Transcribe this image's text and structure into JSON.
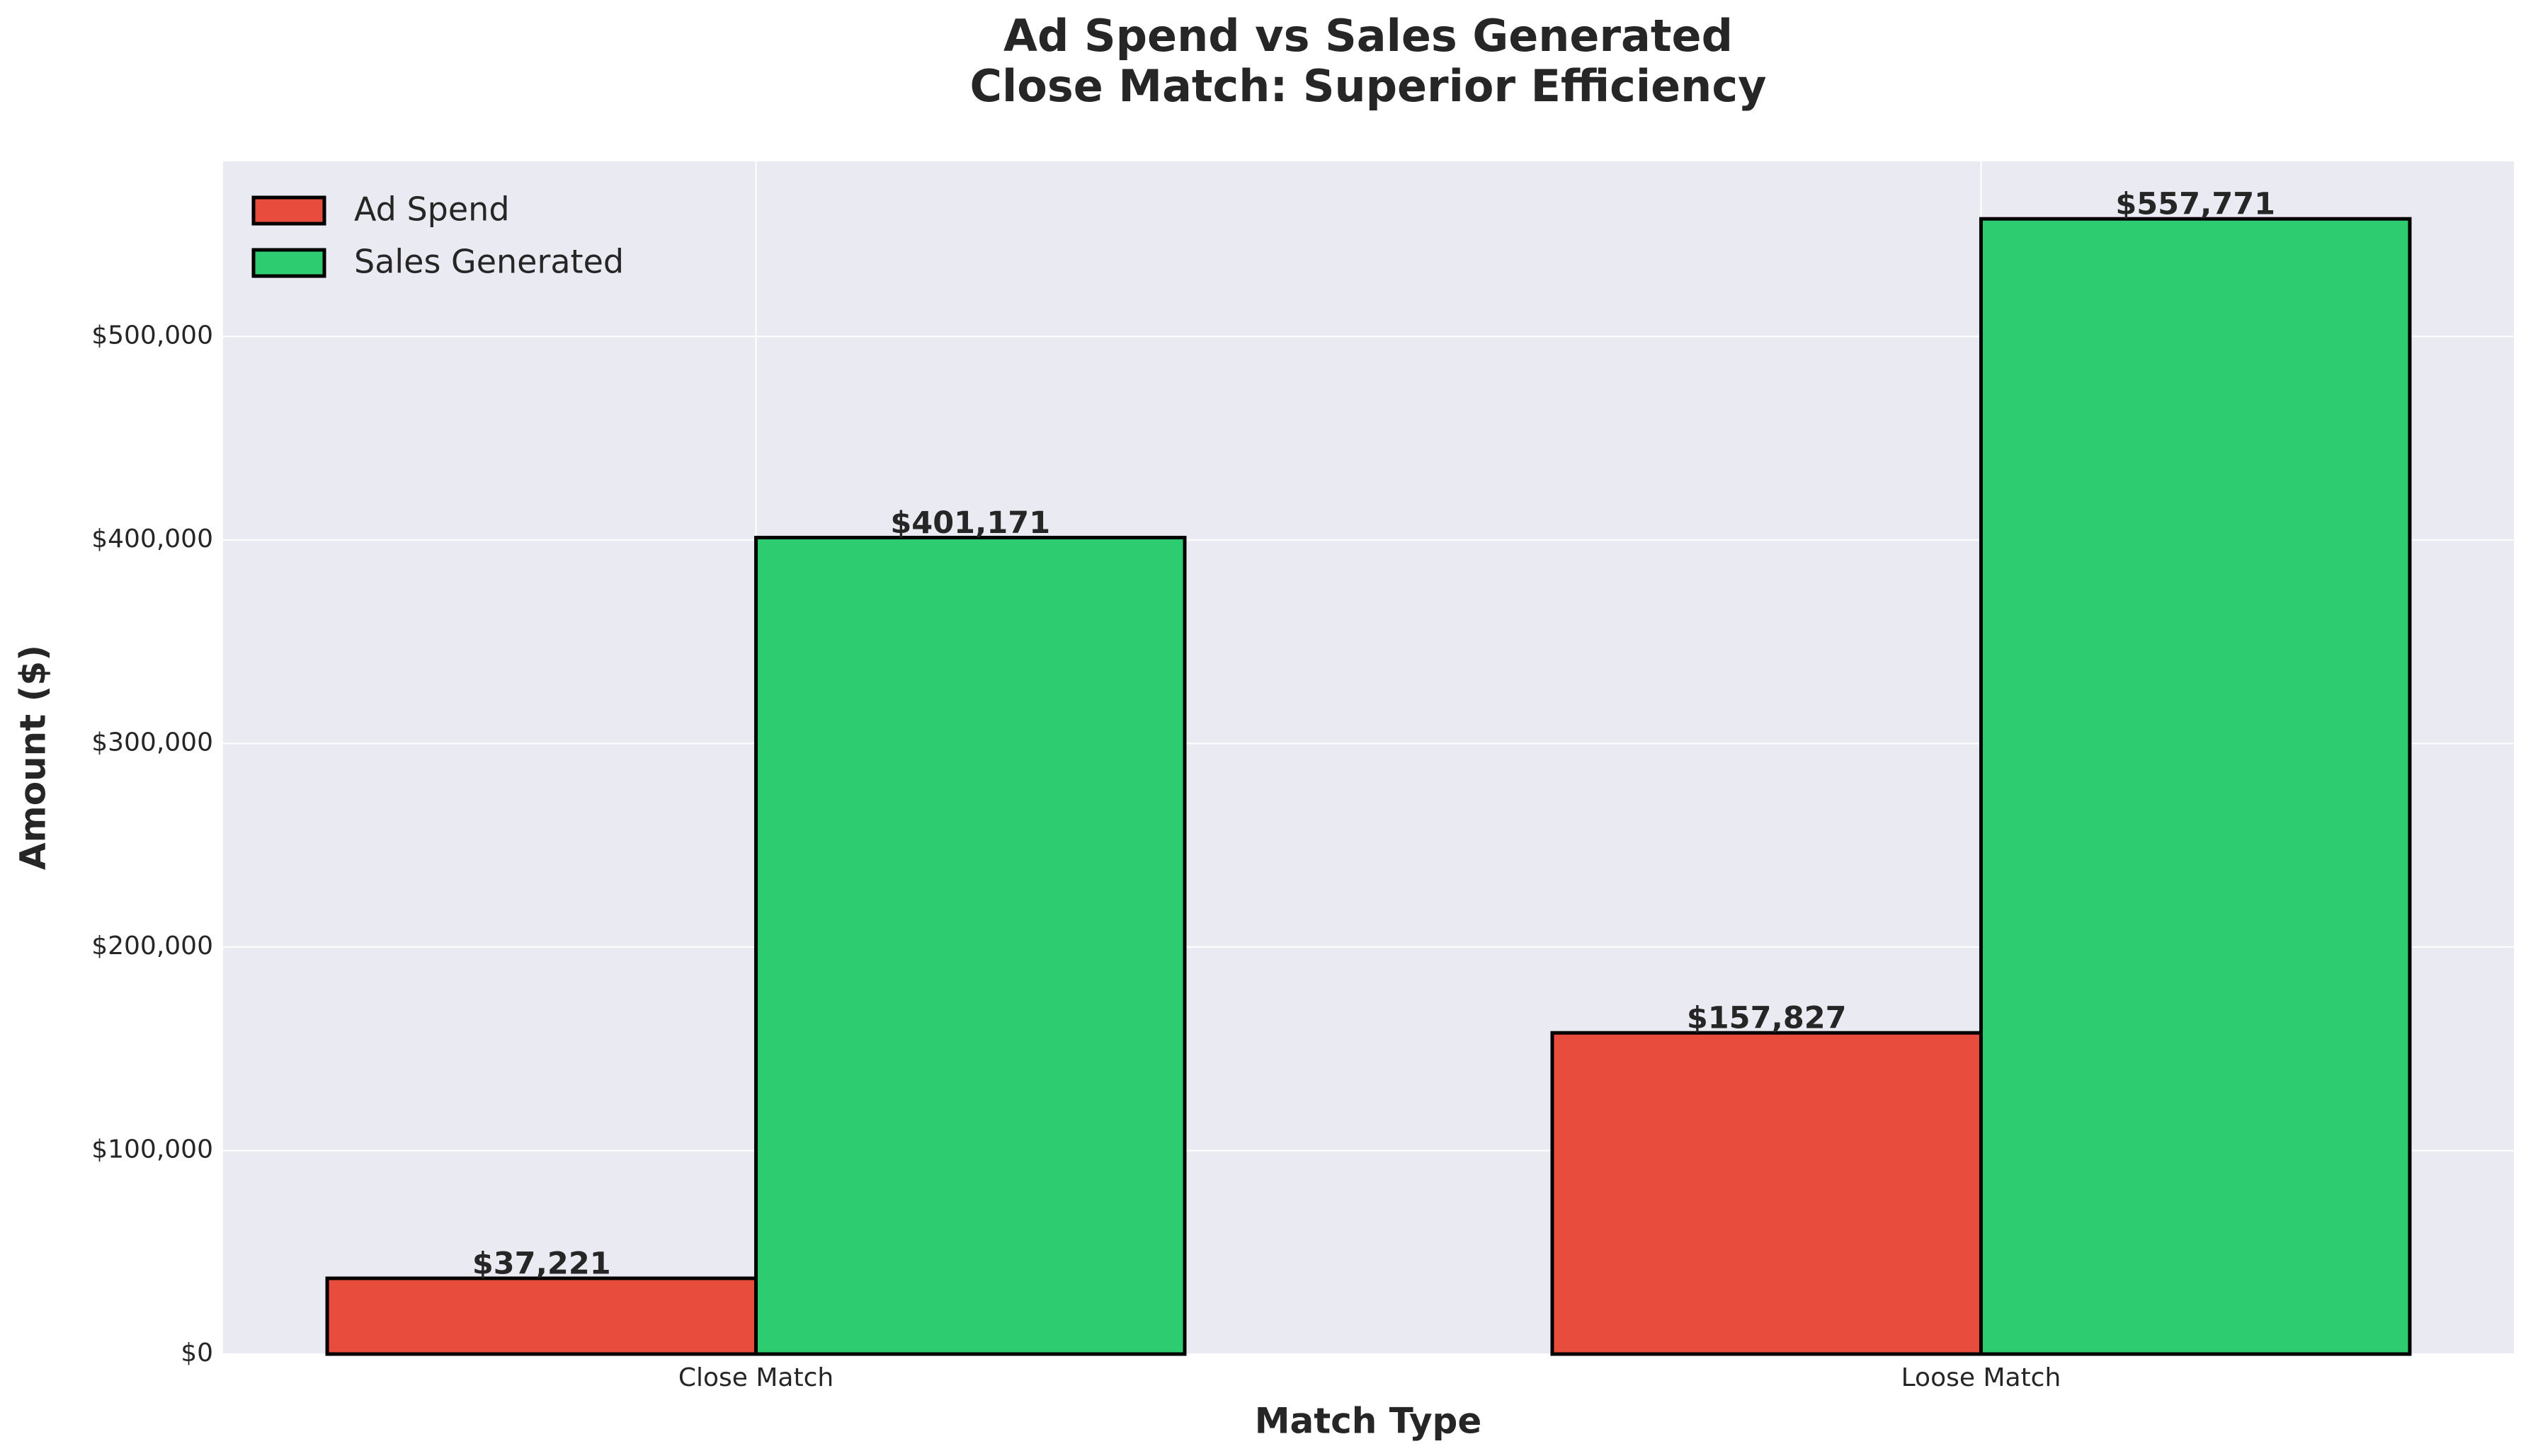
{
  "chart_data": {
    "type": "bar",
    "title": "Ad Spend vs Sales Generated",
    "subtitle": "Close Match: Superior Efficiency",
    "x_label": "Match Type",
    "y_label": "Amount ($)",
    "categories": [
      "Close Match",
      "Loose Match"
    ],
    "series": [
      {
        "name": "Ad Spend",
        "color": "#e74c3c",
        "values": [
          37221,
          157827
        ],
        "value_labels": [
          "$37,221",
          "$157,827"
        ]
      },
      {
        "name": "Sales Generated",
        "color": "#2ecc71",
        "values": [
          401171,
          557771
        ],
        "value_labels": [
          "$401,171",
          "$557,771"
        ]
      }
    ],
    "ylim": [
      0,
      586000
    ],
    "yticks": [
      {
        "value": 0,
        "label": "$0"
      },
      {
        "value": 100000,
        "label": "$100,000"
      },
      {
        "value": 200000,
        "label": "$200,000"
      },
      {
        "value": 300000,
        "label": "$300,000"
      },
      {
        "value": 400000,
        "label": "$400,000"
      },
      {
        "value": 500000,
        "label": "$500,000"
      }
    ],
    "grid": true,
    "legend_position": "upper-left"
  }
}
